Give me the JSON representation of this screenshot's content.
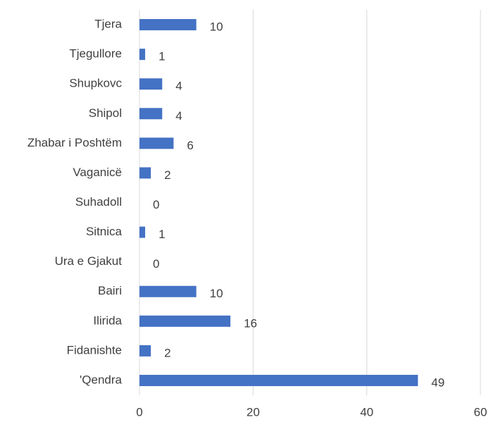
{
  "chart_data": {
    "type": "barh",
    "categories": [
      "Tjera",
      "Tjegullore",
      "Shupkovc",
      "Shipol",
      "Zhabar i Poshtëm",
      "Vaganicë",
      "Suhadoll",
      "Sitnica",
      "Ura e Gjakut",
      "Bairi",
      "Ilirida",
      "Fidanishte",
      "'Qendra"
    ],
    "values": [
      10,
      1,
      4,
      4,
      6,
      2,
      0,
      1,
      0,
      10,
      16,
      2,
      49
    ],
    "color": "#4472c4",
    "xlim": [
      0,
      60
    ],
    "xticks": [
      0,
      20,
      40,
      60
    ],
    "grid": true
  }
}
